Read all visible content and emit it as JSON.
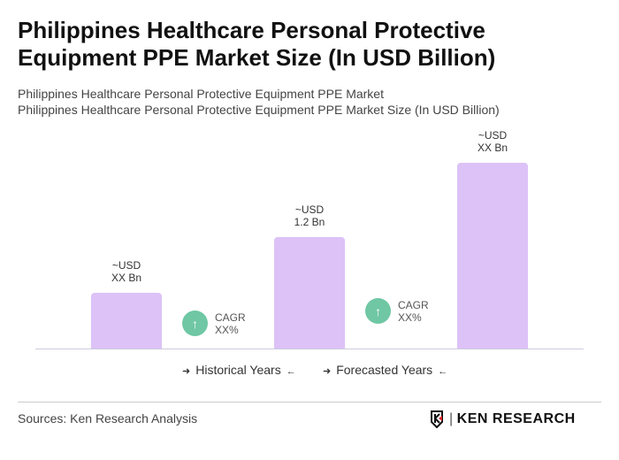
{
  "title": "Philippines Healthcare Personal Protective Equipment PPE Market Size (In USD Billion)",
  "subtitle_1": "Philippines Healthcare Personal Protective Equipment PPE Market",
  "subtitle_2": "Philippines Healthcare Personal Protective Equipment PPE Market Size (In USD Billion)",
  "chart_data": {
    "type": "bar",
    "values": [
      0.6,
      1.2,
      2.0
    ],
    "value_labels": [
      [
        "~USD",
        "XX Bn"
      ],
      [
        "~USD",
        "1.2 Bn"
      ],
      [
        "~USD",
        "XX Bn"
      ]
    ],
    "bar_color": "#dcc2f7",
    "cagr": [
      {
        "label": "CAGR",
        "value": "XX%"
      },
      {
        "label": "CAGR",
        "value": "XX%"
      }
    ],
    "cagr_color": "#6fc7a4",
    "legend": [
      "Historical Years",
      "Forecasted Years"
    ],
    "ylim": [
      0,
      2.0
    ],
    "grid": false
  },
  "footer": {
    "source": "Sources: Ken Research Analysis",
    "logo_text": "KEN RESEARCH"
  }
}
